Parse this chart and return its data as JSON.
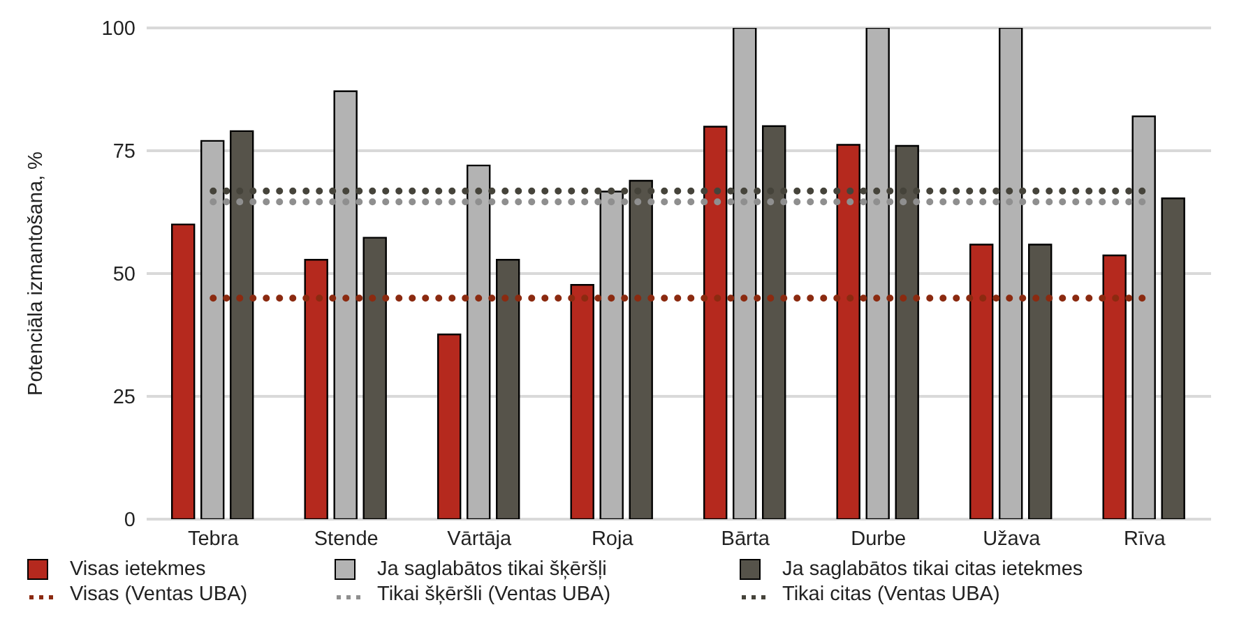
{
  "chart_data": {
    "type": "bar",
    "ylabel": "Potenciāla izmantošana, %",
    "categories": [
      "Tebra",
      "Stende",
      "Vārtāja",
      "Roja",
      "Bārta",
      "Durbe",
      "Užava",
      "Rīva"
    ],
    "series": [
      {
        "name": "Visas ietekmes",
        "color": "#b5291e",
        "values": [
          60,
          52.8,
          37.6,
          47.7,
          79.9,
          76.2,
          55.9,
          53.7
        ]
      },
      {
        "name": "Ja saglabātos tikai šķēršļi",
        "color": "#b3b3b3",
        "values": [
          77,
          87.1,
          72,
          66.7,
          100,
          100,
          100,
          82
        ]
      },
      {
        "name": "Ja saglabātos tikai citas ietekmes",
        "color": "#56534a",
        "values": [
          79,
          57.3,
          52.8,
          68.9,
          80,
          76,
          55.9,
          65.3
        ]
      },
      {
        "name": "Visas (Ventas UBA)",
        "type": "line",
        "line_style": "dotted",
        "marker": "none",
        "color": "#8b2a10",
        "values": [
          45,
          45,
          45,
          45,
          45,
          45,
          45,
          45
        ]
      },
      {
        "name": "Tikai šķēršli (Ventas UBA)",
        "type": "line",
        "line_style": "dotted",
        "marker": "none",
        "color": "#8f8f8f",
        "values": [
          64.6,
          64.6,
          64.6,
          64.6,
          64.6,
          64.6,
          64.6,
          64.6
        ]
      },
      {
        "name": "Tikai citas (Ventas UBA)",
        "type": "line",
        "line_style": "dotted",
        "marker": "none",
        "color": "#45433a",
        "values": [
          66.8,
          66.8,
          66.8,
          66.8,
          66.8,
          66.8,
          66.8,
          66.8
        ]
      }
    ],
    "ylim": [
      0,
      100
    ],
    "yticks": [
      0,
      25,
      50,
      75,
      100
    ],
    "grid": "y",
    "legend": "bottom"
  }
}
